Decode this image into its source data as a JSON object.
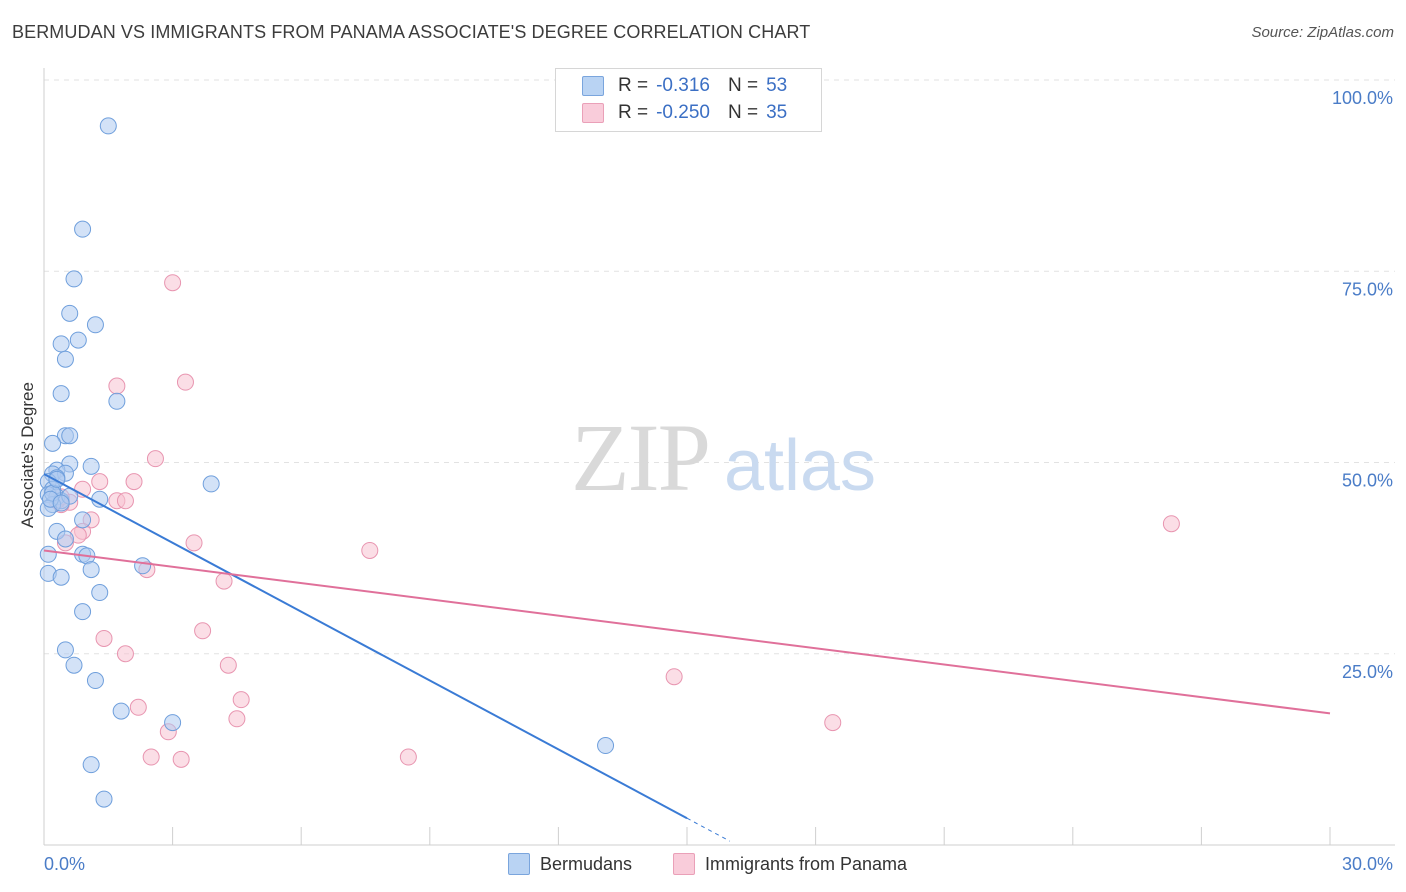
{
  "title": "BERMUDAN VS IMMIGRANTS FROM PANAMA ASSOCIATE'S DEGREE CORRELATION CHART",
  "source": "Source: ZipAtlas.com",
  "watermark": {
    "zip": "ZIP",
    "atlas": "atlas"
  },
  "legend": {
    "rows": [
      {
        "r_label": "R =",
        "r_value": "-0.316",
        "n_label": "N =",
        "n_value": "53"
      },
      {
        "r_label": "R =",
        "r_value": "-0.250",
        "n_label": "N =",
        "n_value": "35"
      }
    ]
  },
  "bottom_legend": [
    "Bermudans",
    "Immigrants from Panama"
  ],
  "colors": {
    "blue_fill": "#aecbf0",
    "blue_stroke": "#6f9fdc",
    "blue_line": "#3a7bd5",
    "pink_fill": "#f7c2d2",
    "pink_stroke": "#e895b0",
    "pink_line": "#e0709a",
    "tick_text": "#4a7cc7",
    "grid": "#e2e2e2"
  },
  "chart_data": {
    "type": "scatter",
    "title": "BERMUDAN VS IMMIGRANTS FROM PANAMA ASSOCIATE'S DEGREE CORRELATION CHART",
    "xlabel": "",
    "ylabel": "Associate's Degree",
    "xlim": [
      0,
      30
    ],
    "ylim": [
      0,
      100
    ],
    "x_tick_labels": [
      "0.0%",
      "30.0%"
    ],
    "y_ticks": [
      25,
      50,
      75,
      100
    ],
    "y_tick_labels": [
      "25.0%",
      "50.0%",
      "75.0%",
      "100.0%"
    ],
    "series": [
      {
        "name": "Bermudans",
        "r": -0.316,
        "n": 53,
        "points": [
          [
            1.5,
            94.0
          ],
          [
            0.9,
            80.5
          ],
          [
            0.7,
            74.0
          ],
          [
            0.6,
            69.5
          ],
          [
            1.2,
            68.0
          ],
          [
            0.4,
            65.5
          ],
          [
            0.8,
            66.0
          ],
          [
            0.5,
            63.5
          ],
          [
            0.4,
            59.0
          ],
          [
            1.7,
            58.0
          ],
          [
            0.5,
            53.5
          ],
          [
            0.6,
            53.5
          ],
          [
            0.2,
            52.5
          ],
          [
            1.1,
            49.5
          ],
          [
            0.6,
            49.8
          ],
          [
            0.3,
            49.0
          ],
          [
            0.2,
            48.5
          ],
          [
            0.5,
            48.6
          ],
          [
            0.3,
            48.0
          ],
          [
            0.1,
            47.5
          ],
          [
            3.9,
            47.2
          ],
          [
            0.2,
            46.5
          ],
          [
            0.1,
            45.8
          ],
          [
            0.3,
            45.5
          ],
          [
            0.4,
            45.0
          ],
          [
            1.3,
            45.2
          ],
          [
            0.2,
            44.5
          ],
          [
            0.1,
            44.0
          ],
          [
            0.9,
            42.5
          ],
          [
            0.3,
            41.0
          ],
          [
            0.5,
            40.0
          ],
          [
            0.9,
            38.0
          ],
          [
            1.0,
            37.8
          ],
          [
            0.1,
            38.0
          ],
          [
            1.1,
            36.0
          ],
          [
            2.3,
            36.5
          ],
          [
            0.1,
            35.5
          ],
          [
            0.4,
            35.0
          ],
          [
            1.3,
            33.0
          ],
          [
            0.9,
            30.5
          ],
          [
            0.5,
            25.5
          ],
          [
            0.7,
            23.5
          ],
          [
            1.2,
            21.5
          ],
          [
            1.8,
            17.5
          ],
          [
            3.0,
            16.0
          ],
          [
            13.1,
            13.0
          ],
          [
            1.1,
            10.5
          ],
          [
            1.4,
            6.0
          ],
          [
            0.2,
            46.0
          ],
          [
            0.3,
            47.8
          ],
          [
            0.15,
            45.2
          ],
          [
            0.6,
            45.6
          ],
          [
            0.4,
            44.7
          ]
        ],
        "trend": {
          "x": [
            0,
            15.0
          ],
          "y": [
            48.5,
            3.5
          ],
          "dash_to": [
            16.0,
            0.5
          ]
        }
      },
      {
        "name": "Immigrants from Panama",
        "r": -0.25,
        "n": 35,
        "points": [
          [
            3.0,
            73.5
          ],
          [
            1.7,
            60.0
          ],
          [
            3.3,
            60.5
          ],
          [
            2.6,
            50.5
          ],
          [
            2.1,
            47.5
          ],
          [
            1.3,
            47.5
          ],
          [
            0.9,
            46.5
          ],
          [
            0.6,
            44.8
          ],
          [
            0.4,
            44.5
          ],
          [
            0.3,
            45.0
          ],
          [
            1.7,
            45.0
          ],
          [
            1.9,
            45.0
          ],
          [
            1.1,
            42.5
          ],
          [
            0.9,
            41.0
          ],
          [
            0.8,
            40.5
          ],
          [
            0.5,
            39.5
          ],
          [
            3.5,
            39.5
          ],
          [
            7.6,
            38.5
          ],
          [
            2.4,
            36.0
          ],
          [
            4.2,
            34.5
          ],
          [
            3.7,
            28.0
          ],
          [
            1.4,
            27.0
          ],
          [
            1.9,
            25.0
          ],
          [
            4.3,
            23.5
          ],
          [
            14.7,
            22.0
          ],
          [
            4.6,
            19.0
          ],
          [
            2.2,
            18.0
          ],
          [
            4.5,
            16.5
          ],
          [
            18.4,
            16.0
          ],
          [
            2.9,
            14.8
          ],
          [
            2.5,
            11.5
          ],
          [
            3.2,
            11.2
          ],
          [
            8.5,
            11.5
          ],
          [
            26.3,
            42.0
          ],
          [
            0.4,
            45.5
          ]
        ],
        "trend": {
          "x": [
            0,
            30
          ],
          "y": [
            38.5,
            17.2
          ]
        }
      }
    ]
  }
}
